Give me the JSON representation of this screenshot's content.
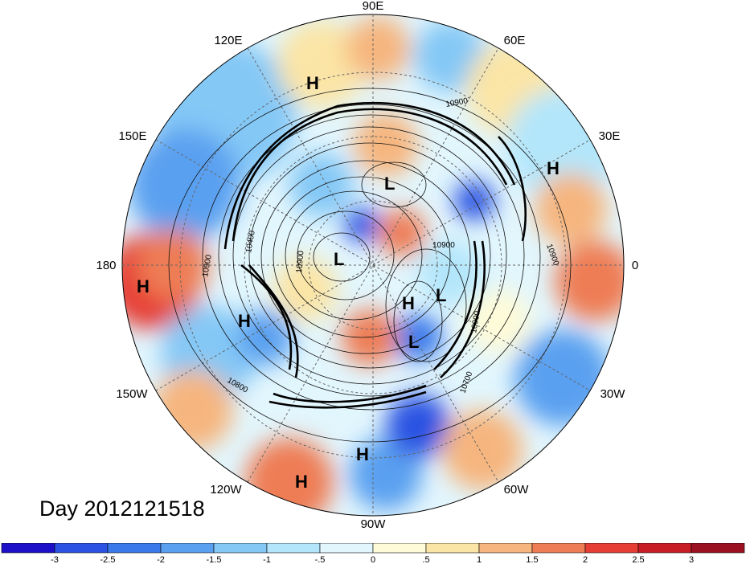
{
  "title": "Day 2012121518",
  "longitude_labels": {
    "e90": "90E",
    "e60": "60E",
    "e30": "30E",
    "zero": "0",
    "w30": "30W",
    "w60": "60W",
    "w90": "90W",
    "w120": "120W",
    "w150": "150W",
    "d180": "180",
    "e150": "150E",
    "e120": "120E"
  },
  "pressure_centers": [
    {
      "label": "H",
      "region": "north-pacific-west"
    },
    {
      "label": "H",
      "region": "eurasia-east"
    },
    {
      "label": "L",
      "region": "arctic-north"
    },
    {
      "label": "L",
      "region": "arctic-west"
    },
    {
      "label": "H",
      "region": "arctic-center"
    },
    {
      "label": "L",
      "region": "arctic-center-east"
    },
    {
      "label": "L",
      "region": "greenland"
    },
    {
      "label": "H",
      "region": "gulf-of-alaska"
    },
    {
      "label": "H",
      "region": "central-pacific"
    },
    {
      "label": "H",
      "region": "gulf-of-mexico"
    },
    {
      "label": "H",
      "region": "eastern-pacific"
    }
  ],
  "contour_labels": [
    "10900",
    "10900",
    "10400",
    "10900",
    "10900",
    "10700",
    "10800",
    "10900",
    "10900"
  ],
  "colorbar": {
    "tick_labels": [
      "-3",
      "-2.5",
      "-2",
      "-1.5",
      "-1",
      "-.5",
      "0",
      ".5",
      "1",
      "1.5",
      "2",
      "2.5",
      "3"
    ],
    "colors": [
      "#1e10c8",
      "#2b52e2",
      "#3a79ea",
      "#5aa0f0",
      "#84c8f6",
      "#b3e6fb",
      "#e2f6fd",
      "#fefbd8",
      "#fbe5a6",
      "#f6b57e",
      "#ee7d55",
      "#e63e34",
      "#c81d26",
      "#9b1122"
    ]
  }
}
